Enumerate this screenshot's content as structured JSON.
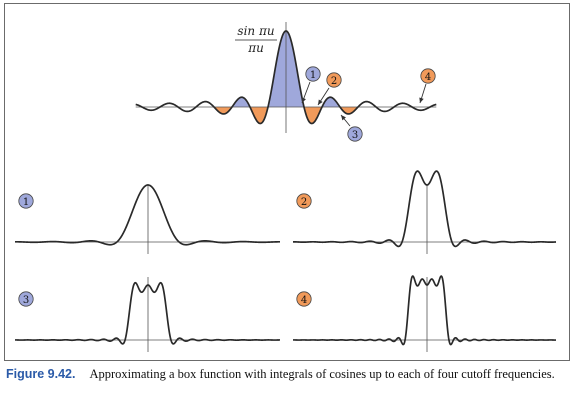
{
  "formula": {
    "numerator": "sin πu",
    "denominator": "πu"
  },
  "markers": [
    {
      "num": "1",
      "color": "#9fa8db"
    },
    {
      "num": "2",
      "color": "#f19a5a"
    },
    {
      "num": "3",
      "color": "#9fa8db"
    },
    {
      "num": "4",
      "color": "#f19a5a"
    }
  ],
  "panels": [
    {
      "num": "1",
      "color": "#9fa8db",
      "terms": 1
    },
    {
      "num": "2",
      "color": "#f19a5a",
      "terms": 2
    },
    {
      "num": "3",
      "color": "#9fa8db",
      "terms": 3
    },
    {
      "num": "4",
      "color": "#f19a5a",
      "terms": 4
    }
  ],
  "colors": {
    "positive_fill": "#9fa8db",
    "negative_fill": "#f19a5a",
    "curve": "#2a2a2a",
    "axis": "#555555",
    "caption_label": "#2a5aa8"
  },
  "caption": {
    "label": "Figure 9.42.",
    "text": "Approximating a box function with integrals of cosines up to each of four cutoff frequencies."
  }
}
